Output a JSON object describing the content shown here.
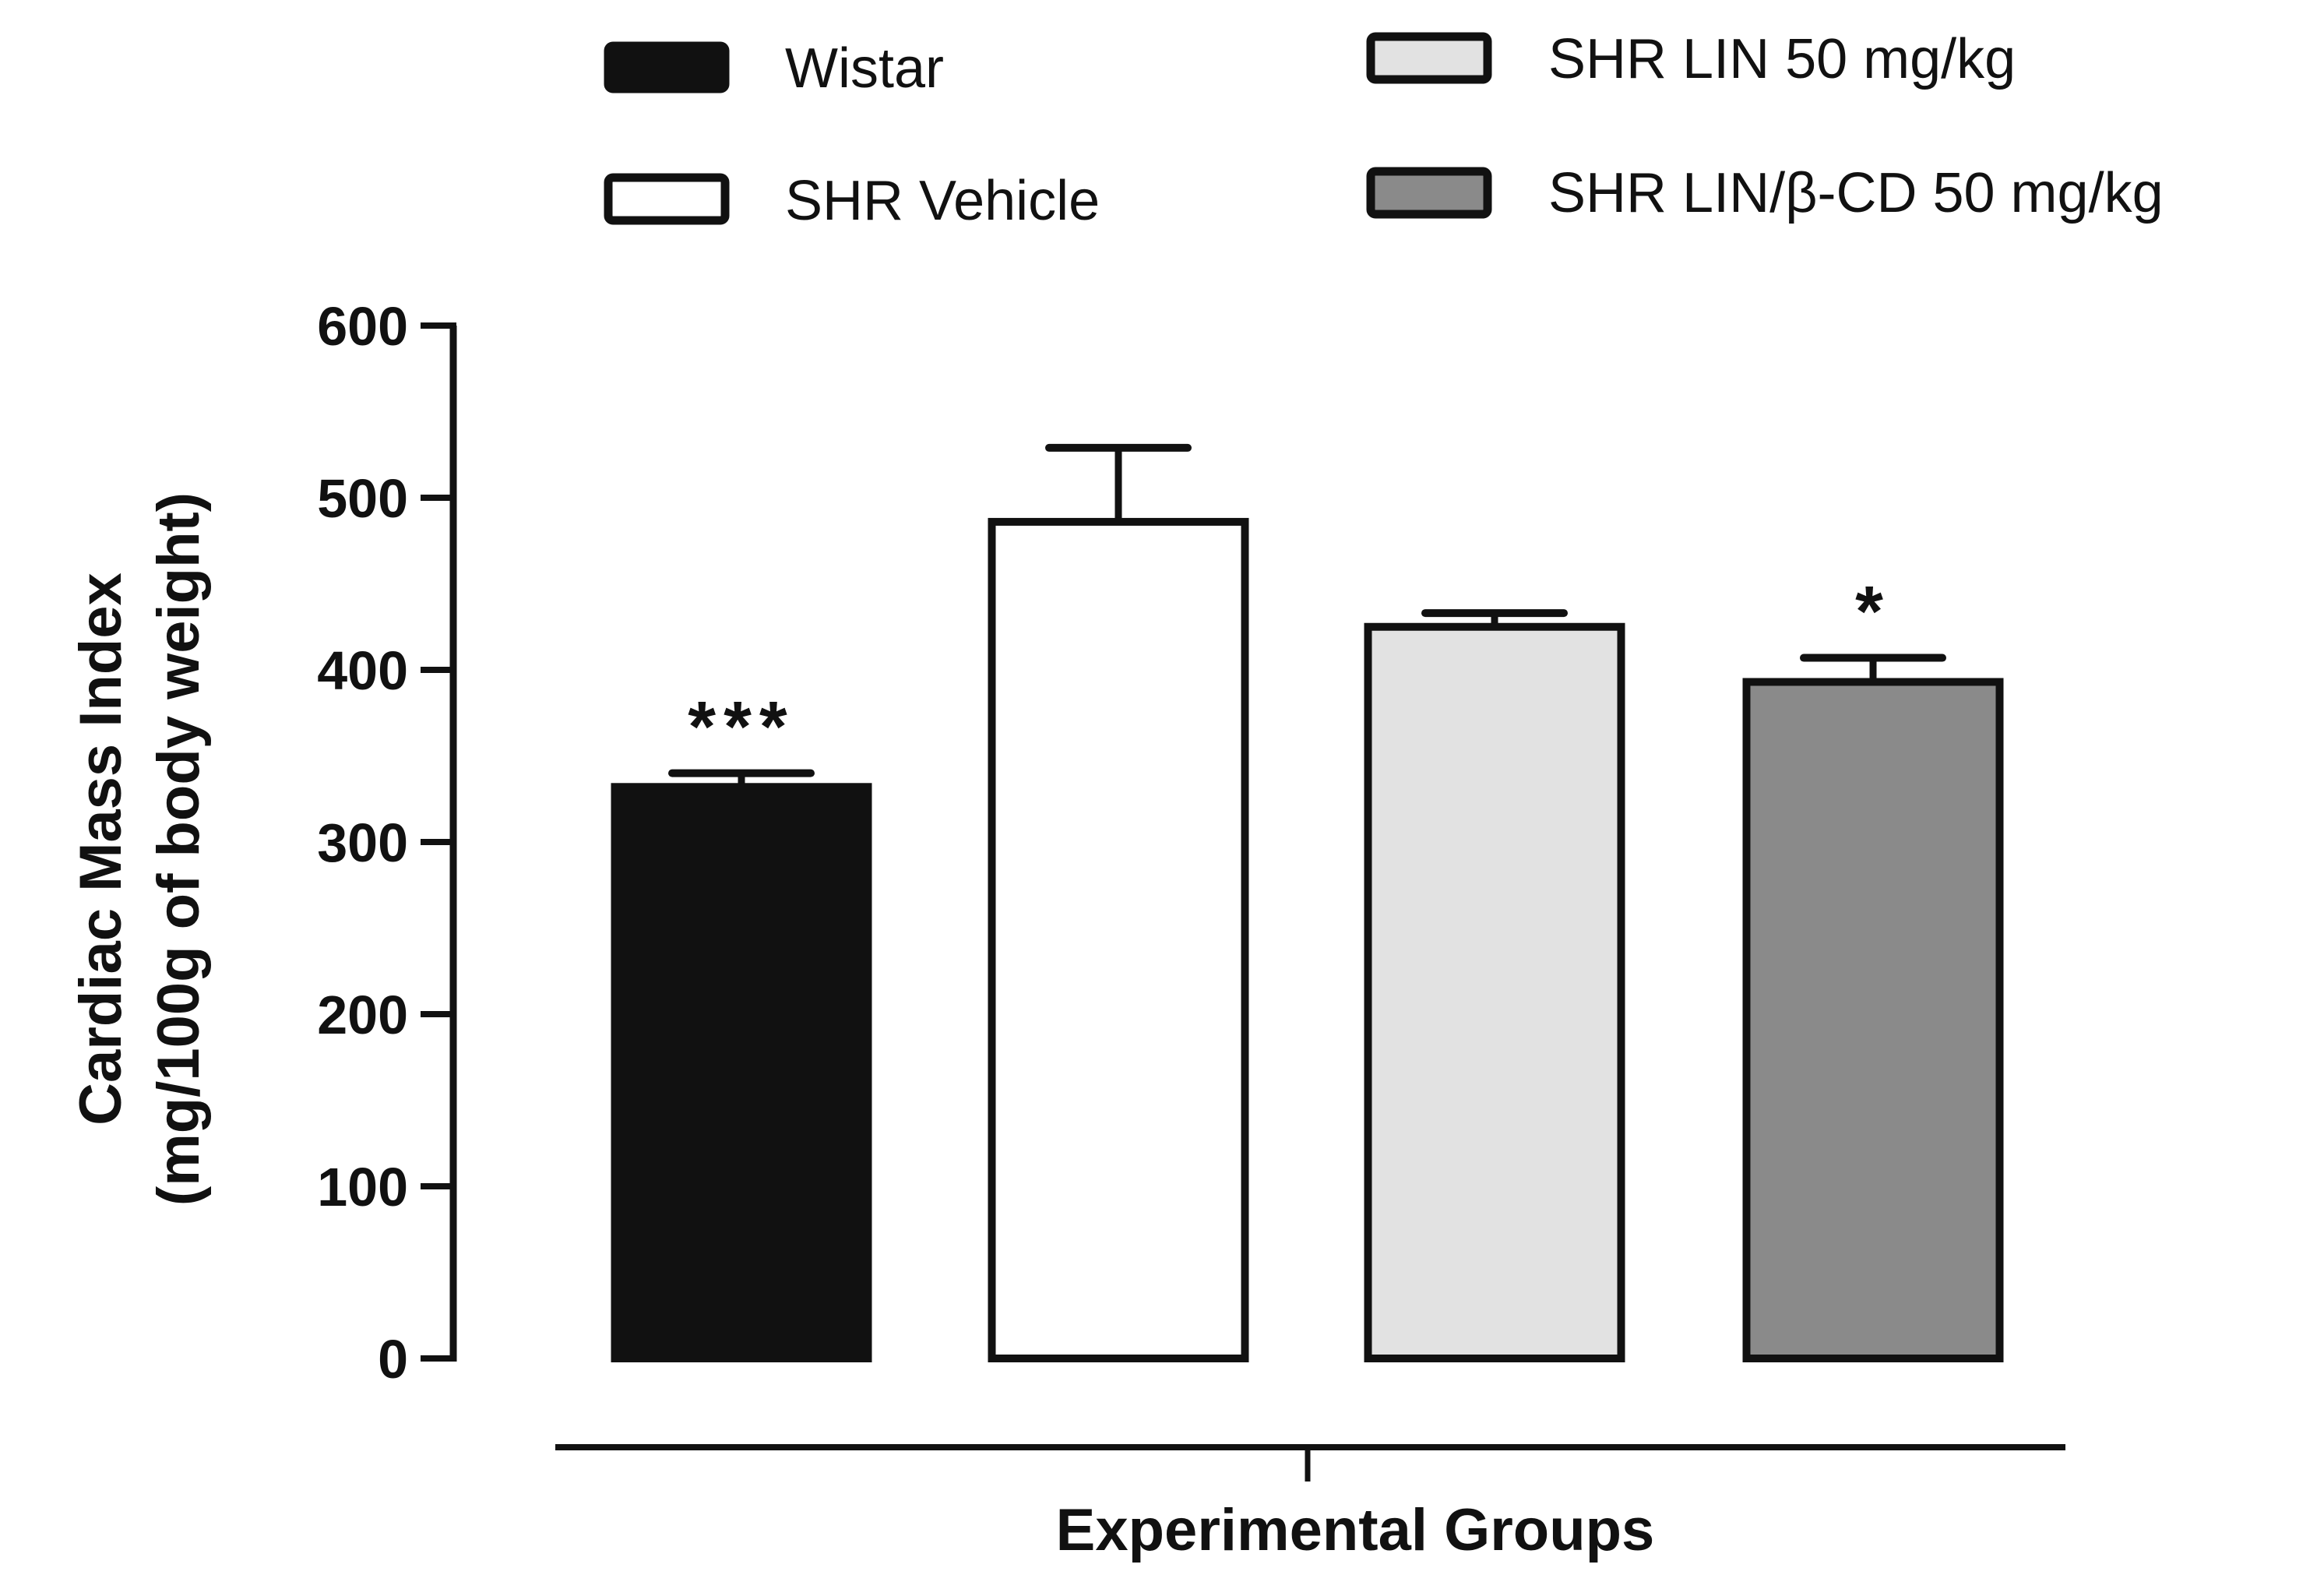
{
  "chart_data": {
    "type": "bar",
    "title": "",
    "xlabel": "Experimental Groups",
    "ylabel_line1": "Cardiac Mass Index",
    "ylabel_line2": "(mg/100g of body weight)",
    "ylim": [
      0,
      600
    ],
    "yticks": [
      0,
      100,
      200,
      300,
      400,
      500,
      600
    ],
    "ytick_labels": [
      "0",
      "100",
      "200",
      "300",
      "400",
      "500",
      "600"
    ],
    "categories": [
      "Wistar",
      "SHR Vehicle",
      "SHR LIN 50 mg/kg",
      "SHR LIN/β-CD 50 mg/kg"
    ],
    "values": [
      332,
      486,
      425,
      393
    ],
    "errors": [
      8,
      43,
      8,
      14
    ],
    "significance": [
      "***",
      "",
      "",
      "*"
    ],
    "colors": [
      "#111111",
      "#ffffff",
      "#e2e2e2",
      "#8a8a8a"
    ],
    "legend_position": "top",
    "legend": [
      {
        "label": "Wistar",
        "color": "#111111"
      },
      {
        "label": "SHR Vehicle",
        "color": "#ffffff"
      },
      {
        "label": "SHR LIN 50 mg/kg",
        "color": "#e2e2e2"
      },
      {
        "label": "SHR LIN/β-CD 50 mg/kg",
        "color": "#8a8a8a"
      }
    ]
  }
}
